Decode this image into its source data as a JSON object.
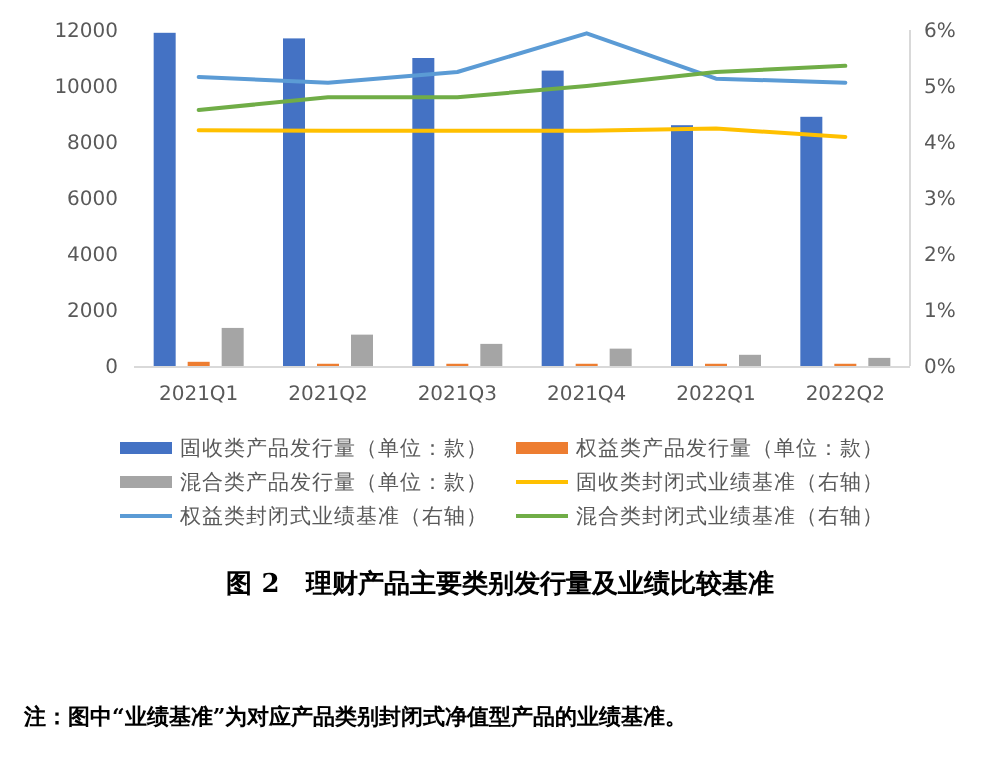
{
  "chart_data": {
    "type": "bar",
    "title": "图 2　理财产品主要类别发行量及业绩比较基准",
    "annotations": [
      "注：图中“业绩基准”为对应产品类别封闭式净值型产品的业绩基准。"
    ],
    "categories": [
      "2021Q1",
      "2021Q2",
      "2021Q3",
      "2021Q4",
      "2022Q1",
      "2022Q2"
    ],
    "series": [
      {
        "name": "固收类产品发行量（单位：款）",
        "color": "#4472c4",
        "values": [
          11900,
          11700,
          11000,
          10550,
          8600,
          8900
        ]
      },
      {
        "name": "权益类产品发行量（单位：款）",
        "color": "#ed7d31",
        "values": [
          150,
          80,
          80,
          80,
          80,
          80
        ]
      },
      {
        "name": "混合类产品发行量（单位：款）",
        "color": "#a5a5a5",
        "values": [
          1360,
          1120,
          790,
          620,
          400,
          290
        ]
      },
      {
        "name": "固收类封闭式业绩基准（右轴）",
        "type": "line",
        "axis": "y2",
        "color": "#ffc000",
        "values": [
          4.21,
          4.2,
          4.2,
          4.2,
          4.24,
          4.09
        ]
      },
      {
        "name": "权益类封闭式业绩基准（右轴）",
        "type": "line",
        "axis": "y2",
        "color": "#5b9bd5",
        "values": [
          5.16,
          5.06,
          5.25,
          5.94,
          5.13,
          5.06
        ]
      },
      {
        "name": "混合类封闭式业绩基准（右轴）",
        "type": "line",
        "axis": "y2",
        "color": "#70ad47",
        "values": [
          4.57,
          4.8,
          4.8,
          5.0,
          5.25,
          5.36
        ]
      }
    ],
    "ylim": [
      0,
      12000
    ],
    "yticks": [
      0,
      2000,
      4000,
      6000,
      8000,
      10000,
      12000
    ],
    "y2lim": [
      0,
      6
    ],
    "y2ticks": [
      {
        "value": 0,
        "label": "0%"
      },
      {
        "value": 1,
        "label": "1%"
      },
      {
        "value": 2,
        "label": "2%"
      },
      {
        "value": 3,
        "label": "3%"
      },
      {
        "value": 4,
        "label": "4%"
      },
      {
        "value": 5,
        "label": "5%"
      },
      {
        "value": 6,
        "label": "6%"
      }
    ],
    "legend": "bottom",
    "grid": false
  }
}
